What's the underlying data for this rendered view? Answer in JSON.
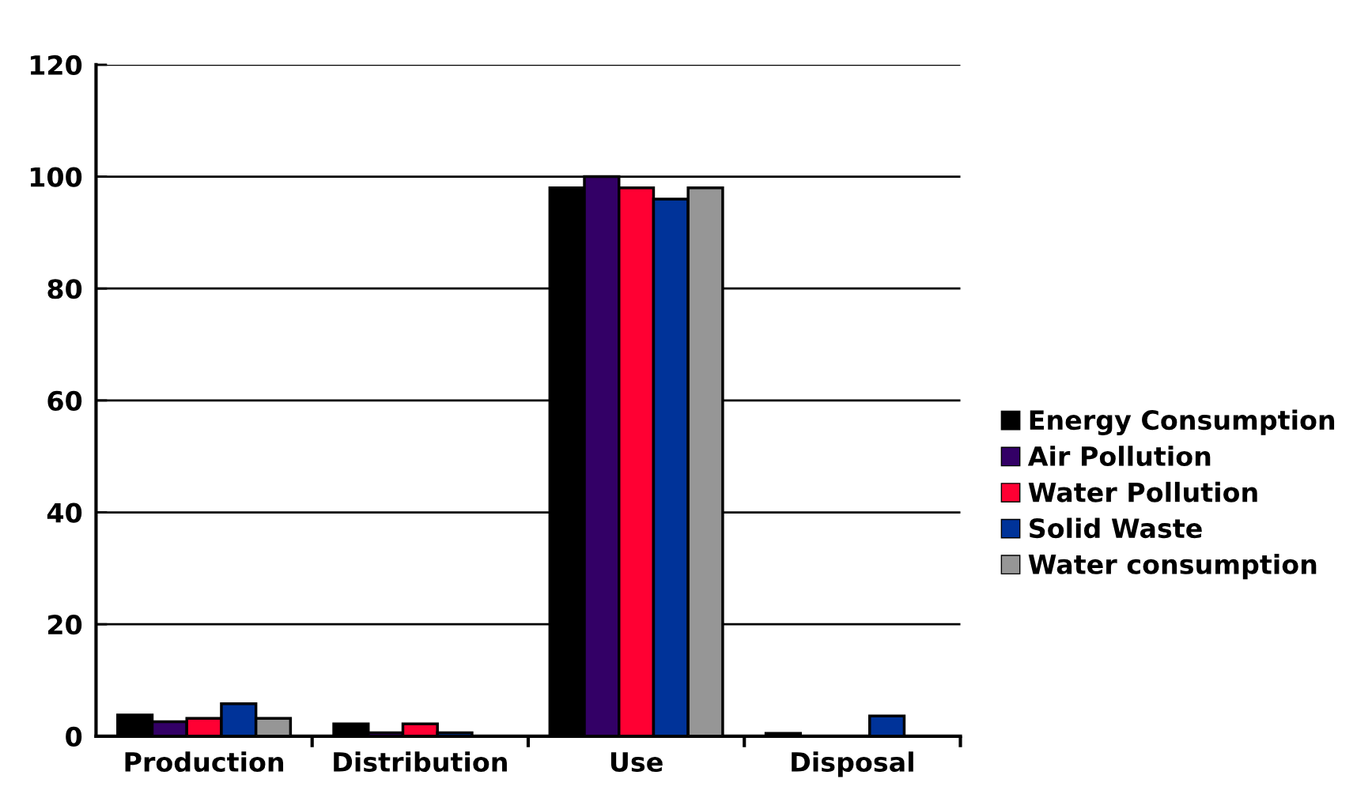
{
  "chart_data": {
    "type": "bar",
    "categories": [
      "Production",
      "Distribution",
      "Use",
      "Disposal"
    ],
    "series": [
      {
        "name": "Energy Consumption",
        "color": "#000000",
        "values": [
          3.8,
          2.2,
          98,
          0.5
        ]
      },
      {
        "name": "Air Pollution",
        "color": "#330066",
        "values": [
          2.6,
          0.6,
          100,
          0
        ]
      },
      {
        "name": "Water Pollution",
        "color": "#ff0033",
        "values": [
          3.2,
          2.2,
          98,
          0
        ]
      },
      {
        "name": "Solid Waste",
        "color": "#003399",
        "values": [
          5.8,
          0.6,
          96,
          3.6
        ]
      },
      {
        "name": "Water consumption",
        "color": "#969696",
        "values": [
          3.2,
          0,
          98,
          0
        ]
      }
    ],
    "ylim": [
      0,
      120
    ],
    "yticks": [
      0,
      20,
      40,
      60,
      80,
      100,
      120
    ],
    "grid": "y",
    "legend": "right"
  }
}
